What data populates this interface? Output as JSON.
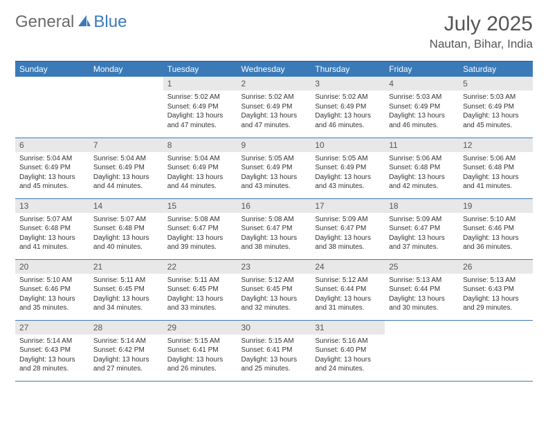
{
  "logo": {
    "general": "General",
    "blue": "Blue",
    "icon_color": "#3a7ab8"
  },
  "title": "July 2025",
  "location": "Nautan, Bihar, India",
  "colors": {
    "header_bg": "#3a7ab8",
    "header_text": "#ffffff",
    "daynum_bg": "#e8e8e8",
    "rule": "#3a7ab8",
    "body_text": "#333333"
  },
  "day_headers": [
    "Sunday",
    "Monday",
    "Tuesday",
    "Wednesday",
    "Thursday",
    "Friday",
    "Saturday"
  ],
  "weeks": [
    [
      {
        "n": "",
        "sr": "",
        "ss": "",
        "dl": ""
      },
      {
        "n": "",
        "sr": "",
        "ss": "",
        "dl": ""
      },
      {
        "n": "1",
        "sr": "Sunrise: 5:02 AM",
        "ss": "Sunset: 6:49 PM",
        "dl": "Daylight: 13 hours and 47 minutes."
      },
      {
        "n": "2",
        "sr": "Sunrise: 5:02 AM",
        "ss": "Sunset: 6:49 PM",
        "dl": "Daylight: 13 hours and 47 minutes."
      },
      {
        "n": "3",
        "sr": "Sunrise: 5:02 AM",
        "ss": "Sunset: 6:49 PM",
        "dl": "Daylight: 13 hours and 46 minutes."
      },
      {
        "n": "4",
        "sr": "Sunrise: 5:03 AM",
        "ss": "Sunset: 6:49 PM",
        "dl": "Daylight: 13 hours and 46 minutes."
      },
      {
        "n": "5",
        "sr": "Sunrise: 5:03 AM",
        "ss": "Sunset: 6:49 PM",
        "dl": "Daylight: 13 hours and 45 minutes."
      }
    ],
    [
      {
        "n": "6",
        "sr": "Sunrise: 5:04 AM",
        "ss": "Sunset: 6:49 PM",
        "dl": "Daylight: 13 hours and 45 minutes."
      },
      {
        "n": "7",
        "sr": "Sunrise: 5:04 AM",
        "ss": "Sunset: 6:49 PM",
        "dl": "Daylight: 13 hours and 44 minutes."
      },
      {
        "n": "8",
        "sr": "Sunrise: 5:04 AM",
        "ss": "Sunset: 6:49 PM",
        "dl": "Daylight: 13 hours and 44 minutes."
      },
      {
        "n": "9",
        "sr": "Sunrise: 5:05 AM",
        "ss": "Sunset: 6:49 PM",
        "dl": "Daylight: 13 hours and 43 minutes."
      },
      {
        "n": "10",
        "sr": "Sunrise: 5:05 AM",
        "ss": "Sunset: 6:49 PM",
        "dl": "Daylight: 13 hours and 43 minutes."
      },
      {
        "n": "11",
        "sr": "Sunrise: 5:06 AM",
        "ss": "Sunset: 6:48 PM",
        "dl": "Daylight: 13 hours and 42 minutes."
      },
      {
        "n": "12",
        "sr": "Sunrise: 5:06 AM",
        "ss": "Sunset: 6:48 PM",
        "dl": "Daylight: 13 hours and 41 minutes."
      }
    ],
    [
      {
        "n": "13",
        "sr": "Sunrise: 5:07 AM",
        "ss": "Sunset: 6:48 PM",
        "dl": "Daylight: 13 hours and 41 minutes."
      },
      {
        "n": "14",
        "sr": "Sunrise: 5:07 AM",
        "ss": "Sunset: 6:48 PM",
        "dl": "Daylight: 13 hours and 40 minutes."
      },
      {
        "n": "15",
        "sr": "Sunrise: 5:08 AM",
        "ss": "Sunset: 6:47 PM",
        "dl": "Daylight: 13 hours and 39 minutes."
      },
      {
        "n": "16",
        "sr": "Sunrise: 5:08 AM",
        "ss": "Sunset: 6:47 PM",
        "dl": "Daylight: 13 hours and 38 minutes."
      },
      {
        "n": "17",
        "sr": "Sunrise: 5:09 AM",
        "ss": "Sunset: 6:47 PM",
        "dl": "Daylight: 13 hours and 38 minutes."
      },
      {
        "n": "18",
        "sr": "Sunrise: 5:09 AM",
        "ss": "Sunset: 6:47 PM",
        "dl": "Daylight: 13 hours and 37 minutes."
      },
      {
        "n": "19",
        "sr": "Sunrise: 5:10 AM",
        "ss": "Sunset: 6:46 PM",
        "dl": "Daylight: 13 hours and 36 minutes."
      }
    ],
    [
      {
        "n": "20",
        "sr": "Sunrise: 5:10 AM",
        "ss": "Sunset: 6:46 PM",
        "dl": "Daylight: 13 hours and 35 minutes."
      },
      {
        "n": "21",
        "sr": "Sunrise: 5:11 AM",
        "ss": "Sunset: 6:45 PM",
        "dl": "Daylight: 13 hours and 34 minutes."
      },
      {
        "n": "22",
        "sr": "Sunrise: 5:11 AM",
        "ss": "Sunset: 6:45 PM",
        "dl": "Daylight: 13 hours and 33 minutes."
      },
      {
        "n": "23",
        "sr": "Sunrise: 5:12 AM",
        "ss": "Sunset: 6:45 PM",
        "dl": "Daylight: 13 hours and 32 minutes."
      },
      {
        "n": "24",
        "sr": "Sunrise: 5:12 AM",
        "ss": "Sunset: 6:44 PM",
        "dl": "Daylight: 13 hours and 31 minutes."
      },
      {
        "n": "25",
        "sr": "Sunrise: 5:13 AM",
        "ss": "Sunset: 6:44 PM",
        "dl": "Daylight: 13 hours and 30 minutes."
      },
      {
        "n": "26",
        "sr": "Sunrise: 5:13 AM",
        "ss": "Sunset: 6:43 PM",
        "dl": "Daylight: 13 hours and 29 minutes."
      }
    ],
    [
      {
        "n": "27",
        "sr": "Sunrise: 5:14 AM",
        "ss": "Sunset: 6:43 PM",
        "dl": "Daylight: 13 hours and 28 minutes."
      },
      {
        "n": "28",
        "sr": "Sunrise: 5:14 AM",
        "ss": "Sunset: 6:42 PM",
        "dl": "Daylight: 13 hours and 27 minutes."
      },
      {
        "n": "29",
        "sr": "Sunrise: 5:15 AM",
        "ss": "Sunset: 6:41 PM",
        "dl": "Daylight: 13 hours and 26 minutes."
      },
      {
        "n": "30",
        "sr": "Sunrise: 5:15 AM",
        "ss": "Sunset: 6:41 PM",
        "dl": "Daylight: 13 hours and 25 minutes."
      },
      {
        "n": "31",
        "sr": "Sunrise: 5:16 AM",
        "ss": "Sunset: 6:40 PM",
        "dl": "Daylight: 13 hours and 24 minutes."
      },
      {
        "n": "",
        "sr": "",
        "ss": "",
        "dl": ""
      },
      {
        "n": "",
        "sr": "",
        "ss": "",
        "dl": ""
      }
    ]
  ]
}
